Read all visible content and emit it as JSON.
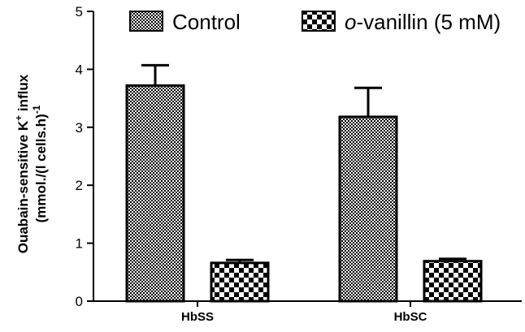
{
  "chart_data": {
    "type": "bar",
    "categories": [
      "HbSS",
      "HbSC"
    ],
    "series": [
      {
        "name": "Control",
        "values": [
          3.72,
          3.18
        ],
        "errors": [
          0.35,
          0.5
        ],
        "pattern": "fine-checker"
      },
      {
        "name": "o-vanillin (5 mM)",
        "name_prefix": "o",
        "name_suffix": "-vanillin (5 mM)",
        "values": [
          0.66,
          0.69
        ],
        "errors": [
          0.05,
          0.04
        ],
        "pattern": "coarse-checker"
      }
    ],
    "ylabel_line1": "Ouabain-sensitive K",
    "ylabel_sup1": "+",
    "ylabel_line1_tail": " influx",
    "ylabel_line2": "(mmol./(l cells.h)",
    "ylabel_sup2": "-1",
    "ylim": [
      0,
      5
    ],
    "yticks": [
      "0",
      "1",
      "2",
      "3",
      "4",
      "5"
    ],
    "grid": false,
    "legend_position": "top",
    "colors": {
      "bar_fill": "#ffffff",
      "bar_stroke": "#000000",
      "pattern": "#000000"
    }
  }
}
